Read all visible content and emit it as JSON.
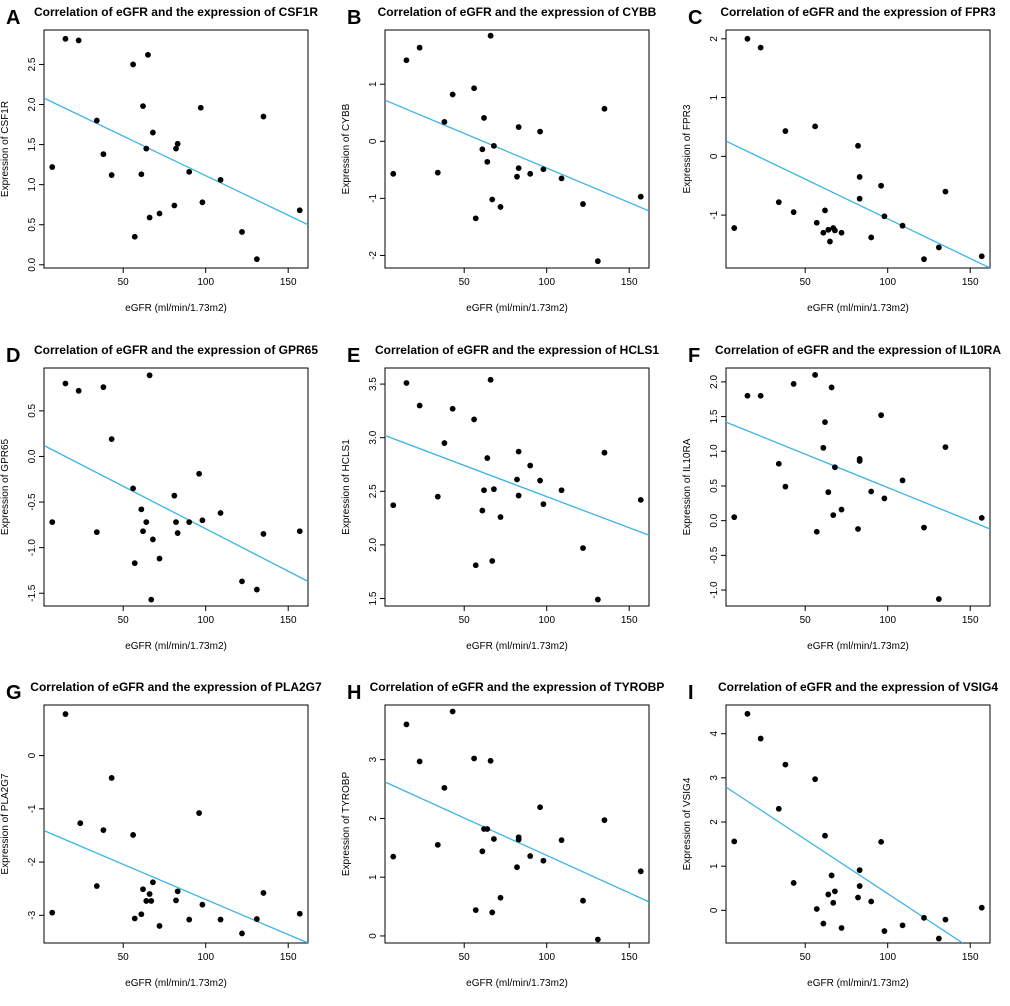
{
  "chart_data": [
    {
      "panel": "A",
      "type": "scatter",
      "title": "Correlation of eGFR and the expression of CSF1R",
      "xlabel": "eGFR (ml/min/1.73m2)",
      "ylabel": "Expression of CSF1R",
      "xlim": [
        2,
        162
      ],
      "ylim": [
        -0.04,
        2.93
      ],
      "xticks": [
        50,
        100,
        150
      ],
      "xtick_labels": [
        "50",
        "100",
        "150"
      ],
      "yticks": [
        0.0,
        0.5,
        1.0,
        1.5,
        2.0,
        2.5
      ],
      "ytick_labels": [
        "0.0",
        "0.5",
        "1.0",
        "1.5",
        "2.0",
        "2.5"
      ],
      "fit_line": {
        "x": [
          2,
          162
        ],
        "y": [
          2.08,
          0.5
        ],
        "color": "#3cb4e5"
      },
      "x": [
        7,
        15,
        23,
        34,
        38,
        43,
        56,
        57,
        61,
        62,
        64,
        65,
        66,
        68,
        72,
        81,
        82,
        83,
        90,
        97,
        98,
        109,
        122,
        131,
        135,
        157
      ],
      "y": [
        1.22,
        2.82,
        2.8,
        1.8,
        1.38,
        1.12,
        2.5,
        0.35,
        1.13,
        1.98,
        1.45,
        2.62,
        0.59,
        1.65,
        0.64,
        0.74,
        1.45,
        1.51,
        1.16,
        1.96,
        0.78,
        1.06,
        0.41,
        0.07,
        1.85,
        0.68
      ]
    },
    {
      "panel": "B",
      "type": "scatter",
      "title": "Correlation of eGFR and the expression of CYBB",
      "xlabel": "eGFR (ml/min/1.73m2)",
      "ylabel": "Expression of CYBB",
      "xlim": [
        2,
        162
      ],
      "ylim": [
        -2.22,
        1.95
      ],
      "xticks": [
        50,
        100,
        150
      ],
      "xtick_labels": [
        "50",
        "100",
        "150"
      ],
      "yticks": [
        -2,
        -1,
        0,
        1
      ],
      "ytick_labels": [
        "-2",
        "-1",
        "0",
        "1"
      ],
      "fit_line": {
        "x": [
          2,
          162
        ],
        "y": [
          0.72,
          -1.22
        ],
        "color": "#3cb4e5"
      },
      "x": [
        7,
        15,
        23,
        34,
        38,
        43,
        56,
        57,
        61,
        62,
        64,
        66,
        67,
        68,
        72,
        82,
        83,
        83,
        90,
        96,
        98,
        109,
        122,
        131,
        135,
        157
      ],
      "y": [
        -0.57,
        1.42,
        1.64,
        -0.55,
        0.34,
        0.82,
        0.93,
        -1.35,
        -0.14,
        0.41,
        -0.36,
        1.85,
        -1.02,
        -0.08,
        -1.15,
        -0.62,
        -0.47,
        0.25,
        -0.57,
        0.17,
        -0.49,
        -0.65,
        -1.1,
        -2.1,
        0.57,
        -0.97
      ]
    },
    {
      "panel": "C",
      "type": "scatter",
      "title": "Correlation of eGFR and the expression of FPR3",
      "xlabel": "eGFR (ml/min/1.73m2)",
      "ylabel": "Expression of FPR3",
      "xlim": [
        2,
        162
      ],
      "ylim": [
        -1.9,
        2.15
      ],
      "xticks": [
        50,
        100,
        150
      ],
      "xtick_labels": [
        "50",
        "100",
        "150"
      ],
      "yticks": [
        -1,
        0,
        1,
        2
      ],
      "ytick_labels": [
        "-1",
        "0",
        "1",
        "2"
      ],
      "fit_line": {
        "x": [
          2,
          162
        ],
        "y": [
          0.26,
          -1.9
        ],
        "color": "#3cb4e5"
      },
      "x": [
        7,
        15,
        23,
        34,
        38,
        43,
        56,
        57,
        61,
        62,
        64,
        65,
        67,
        68,
        72,
        82,
        83,
        83,
        90,
        96,
        98,
        109,
        122,
        131,
        135,
        157
      ],
      "y": [
        -1.22,
        2.0,
        1.85,
        -0.78,
        0.43,
        -0.95,
        0.51,
        -1.13,
        -1.3,
        -0.92,
        -1.25,
        -1.45,
        -1.22,
        -1.26,
        -1.3,
        0.18,
        -0.35,
        -0.72,
        -1.38,
        -0.5,
        -1.02,
        -1.18,
        -1.75,
        -1.55,
        -0.6,
        -1.7
      ]
    },
    {
      "panel": "D",
      "type": "scatter",
      "title": "Correlation of eGFR and the expression of GPR65",
      "xlabel": "eGFR (ml/min/1.73m2)",
      "ylabel": "Expression of GPR65",
      "xlim": [
        2,
        162
      ],
      "ylim": [
        -1.64,
        0.97
      ],
      "xticks": [
        50,
        100,
        150
      ],
      "xtick_labels": [
        "50",
        "100",
        "150"
      ],
      "yticks": [
        -1.5,
        -1.0,
        -0.5,
        0.0,
        0.5
      ],
      "ytick_labels": [
        "-1.5",
        "-1.0",
        "-0.5",
        "0.0",
        "0.5"
      ],
      "fit_line": {
        "x": [
          2,
          162
        ],
        "y": [
          0.12,
          -1.37
        ],
        "color": "#3cb4e5"
      },
      "x": [
        7,
        15,
        23,
        34,
        38,
        43,
        56,
        57,
        61,
        62,
        64,
        66,
        67,
        68,
        72,
        81,
        82,
        83,
        90,
        96,
        98,
        109,
        122,
        131,
        135,
        157
      ],
      "y": [
        -0.72,
        0.8,
        0.72,
        -0.83,
        0.76,
        0.19,
        -0.35,
        -1.17,
        -0.58,
        -0.82,
        -0.72,
        0.89,
        -1.57,
        -0.91,
        -1.12,
        -0.43,
        -0.72,
        -0.84,
        -0.72,
        -0.19,
        -0.7,
        -0.62,
        -1.37,
        -1.46,
        -0.85,
        -0.82
      ]
    },
    {
      "panel": "E",
      "type": "scatter",
      "title": "Correlation of eGFR and the expression of HCLS1",
      "xlabel": "eGFR (ml/min/1.73m2)",
      "ylabel": "Expression of HCLS1",
      "xlim": [
        2,
        162
      ],
      "ylim": [
        1.43,
        3.65
      ],
      "xticks": [
        50,
        100,
        150
      ],
      "xtick_labels": [
        "50",
        "100",
        "150"
      ],
      "yticks": [
        1.5,
        2.0,
        2.5,
        3.0,
        3.5
      ],
      "ytick_labels": [
        "1.5",
        "2.0",
        "2.5",
        "3.0",
        "3.5"
      ],
      "fit_line": {
        "x": [
          2,
          162
        ],
        "y": [
          3.02,
          2.09
        ],
        "color": "#3cb4e5"
      },
      "x": [
        7,
        15,
        23,
        34,
        38,
        43,
        56,
        57,
        61,
        62,
        64,
        66,
        67,
        68,
        72,
        82,
        83,
        83,
        90,
        96,
        98,
        109,
        122,
        131,
        135,
        157
      ],
      "y": [
        2.37,
        3.51,
        3.3,
        2.45,
        2.95,
        3.27,
        3.17,
        1.81,
        2.32,
        2.51,
        2.81,
        3.54,
        1.85,
        2.52,
        2.26,
        2.61,
        2.87,
        2.46,
        2.74,
        2.6,
        2.38,
        2.51,
        1.97,
        1.49,
        2.86,
        2.42
      ]
    },
    {
      "panel": "F",
      "type": "scatter",
      "title": "Correlation of eGFR and the expression of IL10RA",
      "xlabel": "eGFR (ml/min/1.73m2)",
      "ylabel": "Expression of IL10RA",
      "xlim": [
        2,
        162
      ],
      "ylim": [
        -1.23,
        2.2
      ],
      "xticks": [
        50,
        100,
        150
      ],
      "xtick_labels": [
        "50",
        "100",
        "150"
      ],
      "yticks": [
        -1.0,
        -0.5,
        0.0,
        0.5,
        1.0,
        1.5,
        2.0
      ],
      "ytick_labels": [
        "-1.0",
        "-0.5",
        "0.0",
        "0.5",
        "1.0",
        "1.5",
        "2.0"
      ],
      "fit_line": {
        "x": [
          2,
          162
        ],
        "y": [
          1.42,
          -0.12
        ],
        "color": "#3cb4e5"
      },
      "x": [
        7,
        15,
        23,
        34,
        38,
        43,
        56,
        57,
        61,
        62,
        64,
        66,
        67,
        68,
        72,
        82,
        83,
        83,
        90,
        96,
        98,
        109,
        122,
        131,
        135,
        157
      ],
      "y": [
        0.05,
        1.8,
        1.8,
        0.82,
        0.49,
        1.97,
        2.1,
        -0.16,
        1.05,
        1.42,
        0.41,
        1.92,
        0.08,
        0.77,
        0.16,
        -0.12,
        0.86,
        0.89,
        0.42,
        1.52,
        0.32,
        0.58,
        -0.1,
        -1.13,
        1.06,
        0.04
      ]
    },
    {
      "panel": "G",
      "type": "scatter",
      "title": "Correlation of eGFR and the expression of PLA2G7",
      "xlabel": "eGFR (ml/min/1.73m2)",
      "ylabel": "Expression of PLA2G7",
      "xlim": [
        2,
        162
      ],
      "ylim": [
        -3.52,
        0.95
      ],
      "xticks": [
        50,
        100,
        150
      ],
      "xtick_labels": [
        "50",
        "100",
        "150"
      ],
      "yticks": [
        -3,
        -2,
        -1,
        0
      ],
      "ytick_labels": [
        "-3",
        "-2",
        "-1",
        "0"
      ],
      "fit_line": {
        "x": [
          2,
          162
        ],
        "y": [
          -1.41,
          -3.52
        ],
        "color": "#3cb4e5"
      },
      "x": [
        7,
        15,
        24,
        34,
        38,
        43,
        56,
        57,
        61,
        62,
        64,
        66,
        67,
        68,
        72,
        82,
        83,
        90,
        96,
        98,
        109,
        122,
        131,
        135,
        157
      ],
      "y": [
        -2.95,
        0.78,
        -1.27,
        -2.45,
        -1.4,
        -0.42,
        -1.49,
        -3.06,
        -2.98,
        -2.51,
        -2.73,
        -2.6,
        -2.73,
        -2.38,
        -3.2,
        -2.72,
        -2.55,
        -3.08,
        -1.08,
        -2.8,
        -3.08,
        -3.34,
        -3.07,
        -2.58,
        -2.97
      ]
    },
    {
      "panel": "H",
      "type": "scatter",
      "title": "Correlation of eGFR and the expression of TYROBP",
      "xlabel": "eGFR (ml/min/1.73m2)",
      "ylabel": "Expression of TYROBP",
      "xlim": [
        2,
        162
      ],
      "ylim": [
        -0.12,
        3.93
      ],
      "xticks": [
        50,
        100,
        150
      ],
      "xtick_labels": [
        "50",
        "100",
        "150"
      ],
      "yticks": [
        0,
        1,
        2,
        3
      ],
      "ytick_labels": [
        "0",
        "1",
        "2",
        "3"
      ],
      "fit_line": {
        "x": [
          2,
          162
        ],
        "y": [
          2.62,
          0.58
        ],
        "color": "#3cb4e5"
      },
      "x": [
        7,
        15,
        23,
        34,
        38,
        43,
        56,
        57,
        61,
        62,
        64,
        66,
        67,
        68,
        72,
        82,
        83,
        83,
        90,
        96,
        98,
        109,
        122,
        131,
        135,
        157
      ],
      "y": [
        1.35,
        3.6,
        2.97,
        1.55,
        2.52,
        3.82,
        3.02,
        0.44,
        1.44,
        1.82,
        1.82,
        2.98,
        0.4,
        1.65,
        0.65,
        1.17,
        1.64,
        1.68,
        1.36,
        2.19,
        1.28,
        1.63,
        0.6,
        -0.06,
        1.97,
        1.1
      ]
    },
    {
      "panel": "I",
      "type": "scatter",
      "title": "Correlation of eGFR and the expression of VSIG4",
      "xlabel": "eGFR (ml/min/1.73m2)",
      "ylabel": "Expression of VSIG4",
      "xlim": [
        2,
        162
      ],
      "ylim": [
        -0.74,
        4.65
      ],
      "xticks": [
        50,
        100,
        150
      ],
      "xtick_labels": [
        "50",
        "100",
        "150"
      ],
      "yticks": [
        0,
        1,
        2,
        3,
        4
      ],
      "ytick_labels": [
        "0",
        "1",
        "2",
        "3",
        "4"
      ],
      "fit_line": {
        "x": [
          2,
          145.4
        ],
        "y": [
          2.79,
          -0.74
        ],
        "color": "#3cb4e5"
      },
      "x": [
        7,
        15,
        23,
        34,
        38,
        43,
        56,
        57,
        61,
        62,
        64,
        66,
        67,
        68,
        72,
        82,
        83,
        83,
        90,
        96,
        98,
        109,
        122,
        131,
        135,
        157
      ],
      "y": [
        1.56,
        4.45,
        3.89,
        2.3,
        3.3,
        0.62,
        2.97,
        0.03,
        -0.3,
        1.69,
        0.36,
        0.79,
        0.17,
        0.43,
        -0.4,
        0.29,
        0.55,
        0.91,
        0.2,
        1.55,
        -0.47,
        -0.34,
        -0.17,
        -0.64,
        -0.21,
        0.06
      ]
    }
  ]
}
